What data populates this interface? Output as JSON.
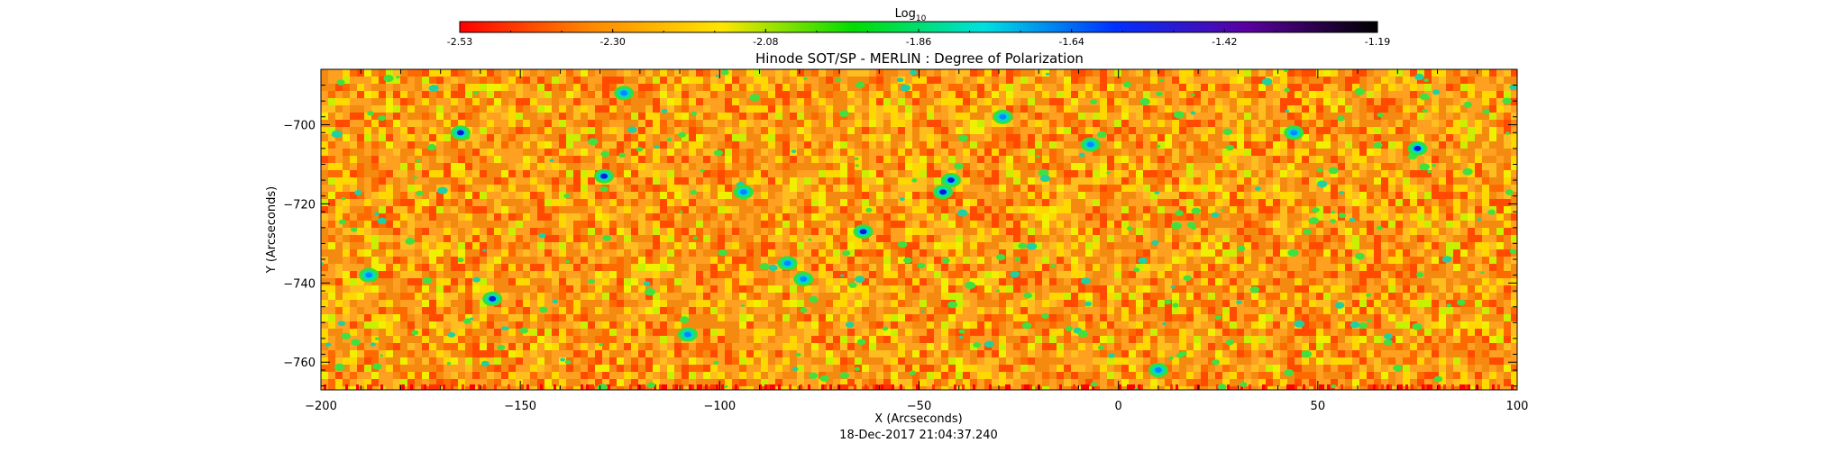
{
  "chart_data": {
    "type": "heatmap",
    "title": "Hinode SOT/SP - MERLIN : Degree of Polarization",
    "xlabel": "X (Arcseconds)",
    "ylabel": "Y (Arcseconds)",
    "timestamp": "18-Dec-2017 21:04:37.240",
    "colorbar": {
      "label_base": "Log",
      "label_sub": "10",
      "range": [
        -2.53,
        -1.19
      ],
      "ticks": [
        "-2.53",
        "-2.30",
        "-2.08",
        "-1.86",
        "-1.64",
        "-1.42",
        "-1.19"
      ],
      "colormap": "rainbow-red-to-black",
      "colors": [
        "#ff0000",
        "#ff8800",
        "#ffe600",
        "#00dd00",
        "#00e0e0",
        "#0030ff",
        "#5a00a0",
        "#000000"
      ]
    },
    "xlim": [
      -200,
      100
    ],
    "ylim": [
      -767,
      -686
    ],
    "xticks": [
      -200,
      -150,
      -100,
      -50,
      0,
      50,
      100
    ],
    "xtick_labels": [
      "−200",
      "−150",
      "−100",
      "−50",
      "0",
      "50",
      "100"
    ],
    "yticks": [
      -700,
      -720,
      -740,
      -760
    ],
    "ytick_labels": [
      "−700",
      "−720",
      "−740",
      "−760"
    ],
    "background_level": "≈ -2.40 (orange/yellow)",
    "features": [
      {
        "x": -165,
        "y": -702,
        "level": -1.55
      },
      {
        "x": -157,
        "y": -744,
        "level": -1.5
      },
      {
        "x": -129,
        "y": -713,
        "level": -1.55
      },
      {
        "x": -124,
        "y": -692,
        "level": -1.8
      },
      {
        "x": -83,
        "y": -735,
        "level": -1.65
      },
      {
        "x": -79,
        "y": -739,
        "level": -1.7
      },
      {
        "x": -64,
        "y": -727,
        "level": -1.55
      },
      {
        "x": -42,
        "y": -714,
        "level": -1.45
      },
      {
        "x": -44,
        "y": -717,
        "level": -1.55
      },
      {
        "x": -29,
        "y": -698,
        "level": -1.75
      },
      {
        "x": -188,
        "y": -738,
        "level": -1.75
      },
      {
        "x": 10,
        "y": -762,
        "level": -1.6
      },
      {
        "x": 75,
        "y": -706,
        "level": -1.55
      },
      {
        "x": 44,
        "y": -702,
        "level": -1.8
      },
      {
        "x": -7,
        "y": -705,
        "level": -1.8
      },
      {
        "x": -108,
        "y": -753,
        "level": -1.85
      },
      {
        "x": -94,
        "y": -717,
        "level": -1.85
      }
    ]
  }
}
